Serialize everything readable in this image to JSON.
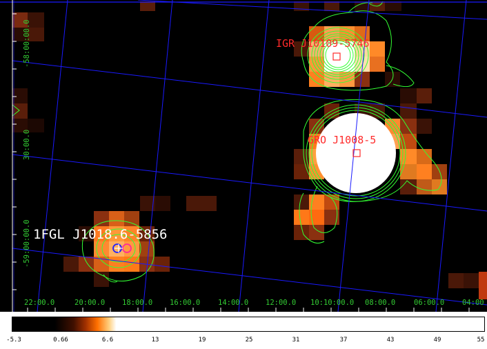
{
  "image": {
    "sources": [
      {
        "label": "IGR J10109-5746",
        "color": "#ff2a2a"
      },
      {
        "label": "GRO J1008-5",
        "color": "#ff2a2a"
      },
      {
        "label": "1FGL J1018.6-5856",
        "color": "#ffffff"
      }
    ],
    "ra_ticks": [
      "22:00.0",
      "20:00.0",
      "18:00.0",
      "16:00.0",
      "14:00.0",
      "12:00.0",
      "10:10:00.0",
      "08:00.0",
      "06:00.0",
      "04:00"
    ],
    "dec_ticks": [
      "-58:00:00.0",
      "30:00.0",
      "-59:00:00.0"
    ],
    "grid_color": "#1a1aff",
    "contour_color": "#33ff33",
    "tick_label_color": "#33cc33"
  },
  "colorbar": {
    "labels": [
      "-5.3",
      "0.66",
      "6.6",
      "13",
      "19",
      "25",
      "31",
      "37",
      "43",
      "49",
      "55"
    ]
  }
}
